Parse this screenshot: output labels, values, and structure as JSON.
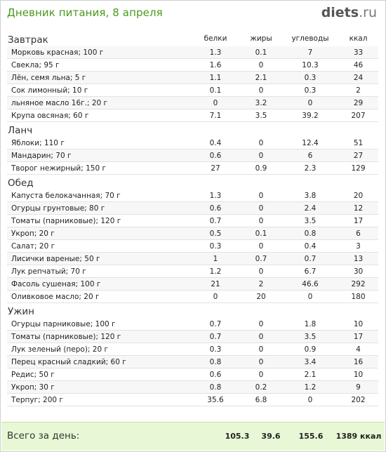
{
  "header": {
    "title": "Дневник питания, 8 апреля",
    "brand_main": "diets",
    "brand_tld": ".ru"
  },
  "columns": {
    "protein": "белки",
    "fat": "жиры",
    "carbs": "углеводы",
    "kcal": "ккал"
  },
  "meals": [
    {
      "name": "Завтрак",
      "items": [
        {
          "food": "Морковь красная; 100 г",
          "protein": "1.3",
          "fat": "0.1",
          "carbs": "7",
          "kcal": "33"
        },
        {
          "food": "Свекла; 95 г",
          "protein": "1.6",
          "fat": "0",
          "carbs": "10.3",
          "kcal": "46"
        },
        {
          "food": "Лён, семя льна; 5 г",
          "protein": "1.1",
          "fat": "2.1",
          "carbs": "0.3",
          "kcal": "24"
        },
        {
          "food": "Сок лимонный; 10 г",
          "protein": "0.1",
          "fat": "0",
          "carbs": "0.3",
          "kcal": "2"
        },
        {
          "food": "льняное масло 16г.; 20 г",
          "protein": "0",
          "fat": "3.2",
          "carbs": "0",
          "kcal": "29"
        },
        {
          "food": "Крупа овсяная; 60 г",
          "protein": "7.1",
          "fat": "3.5",
          "carbs": "39.2",
          "kcal": "207"
        }
      ]
    },
    {
      "name": "Ланч",
      "items": [
        {
          "food": "Яблоки; 110 г",
          "protein": "0.4",
          "fat": "0",
          "carbs": "12.4",
          "kcal": "51"
        },
        {
          "food": "Мандарин; 70 г",
          "protein": "0.6",
          "fat": "0",
          "carbs": "6",
          "kcal": "27"
        },
        {
          "food": "Творог нежирный; 150 г",
          "protein": "27",
          "fat": "0.9",
          "carbs": "2.3",
          "kcal": "129"
        }
      ]
    },
    {
      "name": "Обед",
      "items": [
        {
          "food": "Капуста белокачанная; 70 г",
          "protein": "1.3",
          "fat": "0",
          "carbs": "3.8",
          "kcal": "20"
        },
        {
          "food": "Огурцы грунтовые; 80 г",
          "protein": "0.6",
          "fat": "0",
          "carbs": "2.4",
          "kcal": "12"
        },
        {
          "food": "Томаты (парниковые); 120 г",
          "protein": "0.7",
          "fat": "0",
          "carbs": "3.5",
          "kcal": "17"
        },
        {
          "food": "Укроп; 20 г",
          "protein": "0.5",
          "fat": "0.1",
          "carbs": "0.8",
          "kcal": "6"
        },
        {
          "food": "Салат; 20 г",
          "protein": "0.3",
          "fat": "0",
          "carbs": "0.4",
          "kcal": "3"
        },
        {
          "food": "Лисички вареные; 50 г",
          "protein": "1",
          "fat": "0.7",
          "carbs": "0.7",
          "kcal": "13"
        },
        {
          "food": "Лук репчатый; 70 г",
          "protein": "1.2",
          "fat": "0",
          "carbs": "6.7",
          "kcal": "30"
        },
        {
          "food": "Фасоль сушеная; 100 г",
          "protein": "21",
          "fat": "2",
          "carbs": "46.6",
          "kcal": "292"
        },
        {
          "food": "Оливковое масло; 20 г",
          "protein": "0",
          "fat": "20",
          "carbs": "0",
          "kcal": "180"
        }
      ]
    },
    {
      "name": "Ужин",
      "items": [
        {
          "food": "Огурцы парниковые; 100 г",
          "protein": "0.7",
          "fat": "0",
          "carbs": "1.8",
          "kcal": "10"
        },
        {
          "food": "Томаты (парниковые); 120 г",
          "protein": "0.7",
          "fat": "0",
          "carbs": "3.5",
          "kcal": "17"
        },
        {
          "food": "Лук зеленый (перо); 20 г",
          "protein": "0.3",
          "fat": "0",
          "carbs": "0.9",
          "kcal": "4"
        },
        {
          "food": "Перец красный сладкий; 60 г",
          "protein": "0.8",
          "fat": "0",
          "carbs": "3.4",
          "kcal": "16"
        },
        {
          "food": "Редис; 50 г",
          "protein": "0.6",
          "fat": "0",
          "carbs": "2.1",
          "kcal": "10"
        },
        {
          "food": "Укроп; 30 г",
          "protein": "0.8",
          "fat": "0.2",
          "carbs": "1.2",
          "kcal": "9"
        },
        {
          "food": "Терпуг; 200 г",
          "protein": "35.6",
          "fat": "6.8",
          "carbs": "0",
          "kcal": "202"
        }
      ]
    }
  ],
  "totals": {
    "label": "Всего за день:",
    "protein": "105.3",
    "fat": "39.6",
    "carbs": "155.6",
    "kcal": "1389 ккал"
  },
  "colors": {
    "title": "#4a9a1b",
    "footer_bg": "#e8f8d6"
  }
}
